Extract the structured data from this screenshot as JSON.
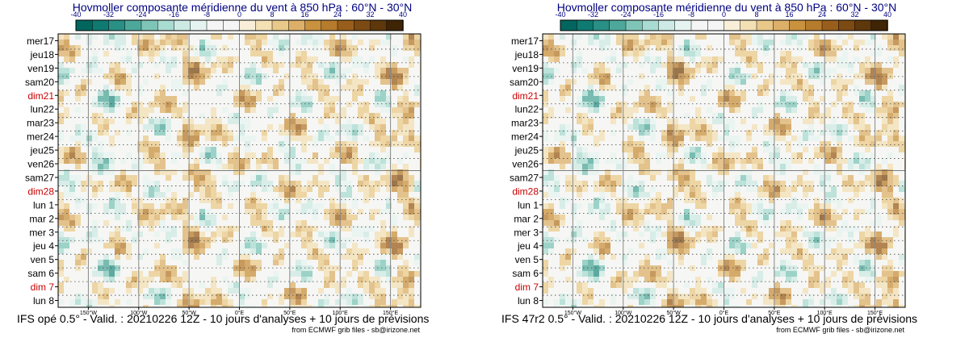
{
  "chart_data": [
    {
      "type": "heatmap",
      "title": "Hovmoller composante méridienne du vent à 850 hPa : 60°N - 30°N",
      "footer": "IFS opé 0.5° - Valid. : 20210226 12Z - 10 jours d'analyses + 10 jours de prévisions",
      "credit": "from ECMWF grib files - sb@irizone.net",
      "colorbar_ticks": [
        "-40",
        "-32",
        "-24",
        "-16",
        "-8",
        "0",
        "8",
        "16",
        "24",
        "32",
        "40"
      ],
      "xticks": [
        "150°W",
        "100°W",
        "50°W",
        "0°E",
        "50°E",
        "100°E",
        "150°E"
      ],
      "x_values": [
        -150,
        -100,
        -50,
        0,
        50,
        100,
        150
      ],
      "xlim": [
        -180,
        180
      ],
      "y_labels": [
        "mer17",
        "jeu18",
        "ven19",
        "sam20",
        "dim21",
        "lun22",
        "mar23",
        "mer24",
        "jeu25",
        "ven26",
        "sam27",
        "dim28",
        "lun 1",
        "mar 2",
        "mer 3",
        "jeu 4",
        "ven 5",
        "sam 6",
        "dim 7",
        "lun 8"
      ],
      "highlight_labels": [
        "dim21",
        "dim28",
        "dim 7"
      ],
      "analysis_forecast_divider_after": "ven26"
    },
    {
      "type": "heatmap",
      "title": "Hovmoller composante méridienne du vent à 850 hPa : 60°N - 30°N",
      "footer": "IFS 47r2 0.5° - Valid. : 20210226 12Z - 10 jours d'analyses + 10 jours de prévisions",
      "credit": "from ECMWF grib files - sb@irizone.net",
      "colorbar_ticks": [
        "-40",
        "-32",
        "-24",
        "-16",
        "-8",
        "0",
        "8",
        "16",
        "24",
        "32",
        "40"
      ],
      "xticks": [
        "150°W",
        "100°W",
        "50°W",
        "0°E",
        "50°E",
        "100°E",
        "150°E"
      ],
      "x_values": [
        -150,
        -100,
        -50,
        0,
        50,
        100,
        150
      ],
      "xlim": [
        -180,
        180
      ],
      "y_labels": [
        "mer17",
        "jeu18",
        "ven19",
        "sam20",
        "dim21",
        "lun22",
        "mar23",
        "mer24",
        "jeu25",
        "ven26",
        "sam27",
        "dim28",
        "lun 1",
        "mar 2",
        "mer 3",
        "jeu 4",
        "ven 5",
        "sam 6",
        "dim 7",
        "lun 8"
      ],
      "highlight_labels": [
        "dim21",
        "dim28",
        "dim 7"
      ],
      "analysis_forecast_divider_after": "ven26"
    }
  ],
  "colors": {
    "palette": [
      "#01665e",
      "#0f7a71",
      "#2a8f84",
      "#4ea79b",
      "#7ec5b8",
      "#a8dbd1",
      "#cdeae4",
      "#e6f4f1",
      "#f5f5f5",
      "#f5f5f5",
      "#f9efd9",
      "#f3e0b4",
      "#e9c98a",
      "#dcb069",
      "#c9923f",
      "#b67b2d",
      "#9a5e1c",
      "#7c4a13",
      "#5e370b",
      "#3f2405"
    ],
    "highlight_label": "#cc0000",
    "title": "#000080"
  }
}
